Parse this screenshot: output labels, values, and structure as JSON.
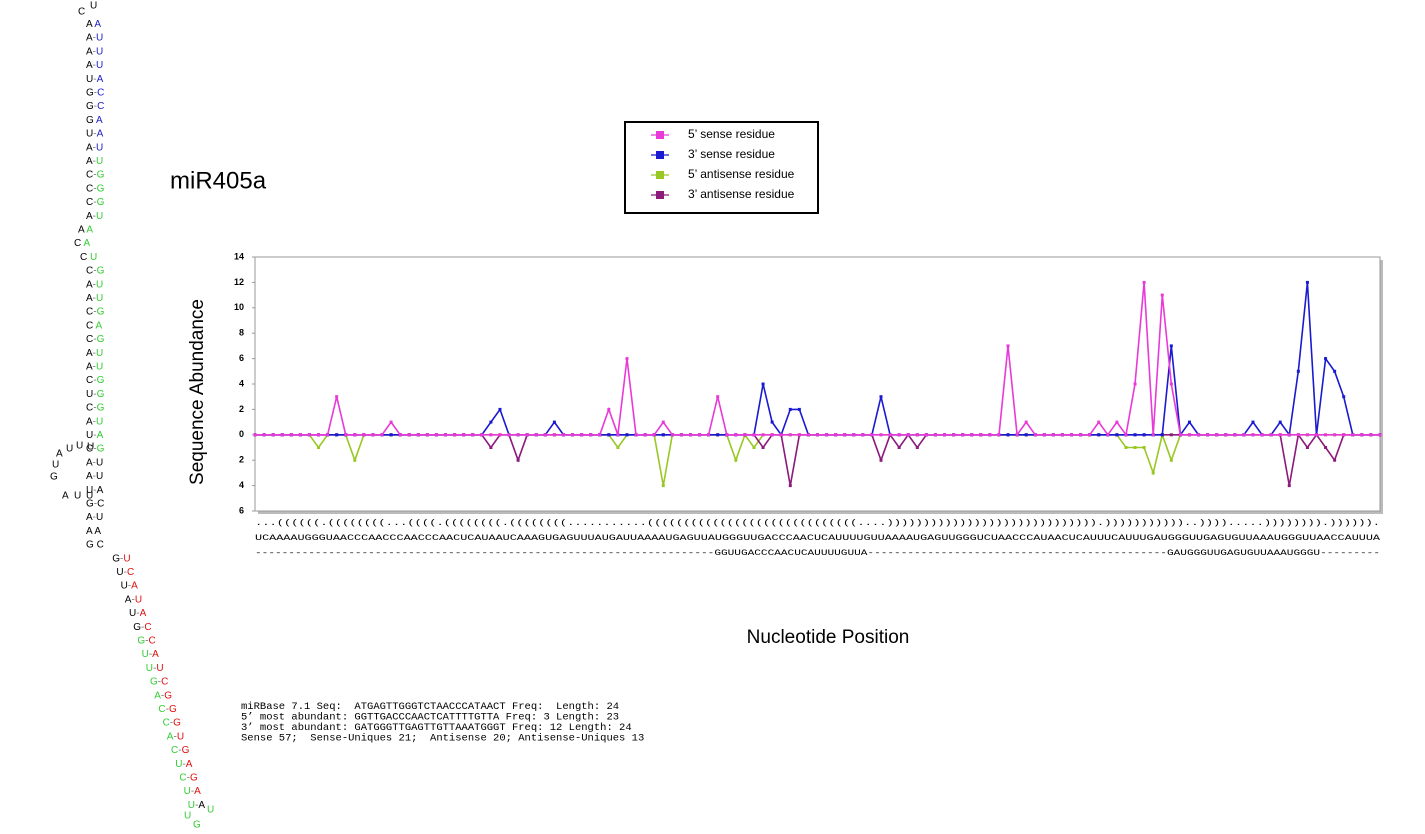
{
  "chart_data": {
    "type": "line",
    "title": "miR405a",
    "ylabel": "Sequence Abundance",
    "xlabel": "Nucleotide Position",
    "ylim": [
      -6,
      14
    ],
    "yticks": [
      {
        "value": -6,
        "label": "6"
      },
      {
        "value": -4,
        "label": "4"
      },
      {
        "value": -2,
        "label": "2"
      },
      0,
      2,
      4,
      6,
      8,
      10,
      12,
      14
    ],
    "legend": "top",
    "series": [
      {
        "name": "5’ sense residue",
        "color": "#e83ad8",
        "values": [
          0,
          0,
          0,
          0,
          0,
          0,
          0,
          0,
          0,
          3,
          0,
          0,
          0,
          0,
          0,
          1,
          0,
          0,
          0,
          0,
          0,
          0,
          0,
          0,
          0,
          0,
          0,
          0,
          0,
          0,
          0,
          0,
          0,
          0,
          0,
          0,
          0,
          0,
          0,
          2,
          0,
          6,
          0,
          0,
          0,
          1,
          0,
          0,
          0,
          0,
          0,
          3,
          0,
          0,
          0,
          0,
          0,
          0,
          0,
          0,
          0,
          0,
          0,
          0,
          0,
          0,
          0,
          0,
          0,
          0,
          0,
          0,
          0,
          0,
          0,
          0,
          0,
          0,
          0,
          0,
          0,
          0,
          0,
          7,
          0,
          1,
          0,
          0,
          0,
          0,
          0,
          0,
          0,
          1,
          0,
          1,
          0,
          4,
          12,
          0,
          11,
          4,
          0,
          0,
          0,
          0,
          0,
          0,
          0,
          0,
          0,
          0,
          0,
          0,
          0,
          0,
          0,
          0,
          0,
          0,
          0,
          0,
          0,
          0,
          0
        ]
      },
      {
        "name": "3’ sense residue",
        "color": "#1a1ad0",
        "values": [
          0,
          0,
          0,
          0,
          0,
          0,
          0,
          0,
          0,
          0,
          0,
          0,
          0,
          0,
          0,
          0,
          0,
          0,
          0,
          0,
          0,
          0,
          0,
          0,
          0,
          0,
          1,
          2,
          0,
          0,
          0,
          0,
          0,
          1,
          0,
          0,
          0,
          0,
          0,
          0,
          0,
          0,
          0,
          0,
          0,
          0,
          0,
          0,
          0,
          0,
          0,
          0,
          0,
          0,
          0,
          0,
          4,
          1,
          0,
          2,
          2,
          0,
          0,
          0,
          0,
          0,
          0,
          0,
          0,
          3,
          0,
          0,
          0,
          0,
          0,
          0,
          0,
          0,
          0,
          0,
          0,
          0,
          0,
          0,
          0,
          0,
          0,
          0,
          0,
          0,
          0,
          0,
          0,
          0,
          0,
          0,
          0,
          0,
          0,
          0,
          0,
          7,
          0,
          1,
          0,
          0,
          0,
          0,
          0,
          0,
          1,
          0,
          0,
          1,
          0,
          5,
          12,
          0,
          6,
          5,
          3,
          0,
          0,
          0,
          0
        ]
      },
      {
        "name": "5’ antisense residue",
        "color": "#99c824",
        "values": [
          0,
          0,
          0,
          0,
          0,
          0,
          0,
          -1,
          0,
          0,
          0,
          -2,
          0,
          0,
          0,
          0,
          0,
          0,
          0,
          0,
          0,
          0,
          0,
          0,
          0,
          0,
          0,
          0,
          0,
          0,
          0,
          0,
          0,
          0,
          0,
          0,
          0,
          0,
          0,
          0,
          -1,
          0,
          0,
          0,
          0,
          -4,
          0,
          0,
          0,
          0,
          0,
          0,
          0,
          -2,
          0,
          -1,
          0,
          0,
          0,
          0,
          0,
          0,
          0,
          0,
          0,
          0,
          0,
          0,
          0,
          0,
          0,
          0,
          0,
          0,
          0,
          0,
          0,
          0,
          0,
          0,
          0,
          0,
          0,
          0,
          0,
          0,
          0,
          0,
          0,
          0,
          0,
          0,
          0,
          0,
          0,
          0,
          -1,
          -1,
          -1,
          -3,
          0,
          -2,
          0,
          0,
          0,
          0,
          0,
          0,
          0,
          0,
          0,
          0,
          0,
          0,
          0,
          0,
          0,
          0,
          0,
          0,
          0,
          0,
          0,
          0,
          0
        ]
      },
      {
        "name": "3’ antisense residue",
        "color": "#8b1a7a",
        "values": [
          0,
          0,
          0,
          0,
          0,
          0,
          0,
          0,
          0,
          0,
          0,
          0,
          0,
          0,
          0,
          0,
          0,
          0,
          0,
          0,
          0,
          0,
          0,
          0,
          0,
          0,
          -1,
          0,
          0,
          -2,
          0,
          0,
          0,
          0,
          0,
          0,
          0,
          0,
          0,
          0,
          0,
          0,
          0,
          0,
          0,
          0,
          0,
          0,
          0,
          0,
          0,
          0,
          0,
          0,
          0,
          0,
          -1,
          0,
          0,
          -4,
          0,
          0,
          0,
          0,
          0,
          0,
          0,
          0,
          0,
          -2,
          0,
          -1,
          0,
          -1,
          0,
          0,
          0,
          0,
          0,
          0,
          0,
          0,
          0,
          0,
          0,
          0,
          0,
          0,
          0,
          0,
          0,
          0,
          0,
          0,
          0,
          0,
          0,
          0,
          0,
          0,
          0,
          0,
          0,
          0,
          0,
          0,
          0,
          0,
          0,
          0,
          0,
          0,
          0,
          0,
          -4,
          0,
          -1,
          0,
          -1,
          -2,
          0,
          0,
          0,
          0,
          0
        ]
      }
    ],
    "sequence_lines": [
      "...((((((.((((((((...((((.((((((((.((((((((...........(((((((((((((((((((((((((((((....))))))))))))))))))))))))))))).)))))))))))..)))).....)))))))).)))))).",
      "UCAAAAUGGGUAACCCAACCCAACCCAACUCAUAAUCAAAGUGAGUUUAUGAUUAAAAUGAGUUAUGGGUUGACCCAACUCAUUUUGUUAAAAUGAGUUGGGUCUAACCCAUAACUCAUUUCAUUUGAUGGGUUGAGUGUUAAAUGGGUUAACCAUUUA",
      "---------------------------------------------------------------------GGUUGACCCAACUCAUUUUGUUA---------------------------------------------GAUGGGUUGAGUGUUAAAUGGGU---------"
    ],
    "info": [
      "miRBase 7.1 Seq:  ATGAGTTGGGTCTAACCCATAACT Freq:  Length: 24",
      "5’ most abundant: GGTTGACCCAACTCATTTTGTTA Freq: 3 Length: 23",
      "3’ most abundant: GATGGGTTGAGTTGTTAAATGGGT Freq: 12 Length: 24",
      "Sense 57;  Sense-Uniques 21;  Antisense 20; Antisense-Uniques 13"
    ]
  },
  "structure": {
    "palette": {
      "k": "#000000",
      "b": "#1a1acc",
      "g": "#33cc33",
      "r": "#e01010"
    },
    "top_loop": [
      "C",
      "U"
    ],
    "rows": [
      "A A",
      "A-U",
      "A-U",
      "A-U",
      "U-A",
      "G-C",
      "G-C",
      "G A",
      "U-A",
      "A-U",
      "A-U",
      "C-G",
      "C-G",
      "C-G",
      "A-U",
      "A A",
      "C A",
      "C U",
      "C-G",
      "A-U",
      "A-U",
      "C-G",
      "C A",
      "C-G",
      "A-U",
      "A-U",
      "C-G",
      "U-G",
      "C-G",
      "A-U",
      "U-A",
      "C-G",
      "A-U",
      "A-U",
      "U-A",
      "G-C",
      "A-U",
      "A A",
      "G C",
      "G-U",
      "U-C",
      "U-A",
      "A-U",
      "U-A",
      "G-C",
      "G-C",
      "U-A",
      "U-U",
      "G-C",
      "A-G",
      "C-G",
      "C-G",
      "A-U",
      "C-G",
      "U-A",
      "C-G",
      "U-A",
      "U-A"
    ],
    "row_colors": [
      "kb",
      "kb",
      "kb",
      "kb",
      "kb",
      "kb",
      "kb",
      "kb",
      "kb",
      "kb",
      "kg",
      "kg",
      "kg",
      "kg",
      "kg",
      "kg",
      "kg",
      "kg",
      "kg",
      "kg",
      "kg",
      "kg",
      "kg",
      "kg",
      "kg",
      "kg",
      "kg",
      "kg",
      "kg",
      "kg",
      "kg",
      "kg",
      "kk",
      "kk",
      "kk",
      "kk",
      "kk",
      "kk",
      "kk",
      "kr",
      "kr",
      "kr",
      "kr",
      "kr",
      "kr",
      "gr",
      "gr",
      "gr",
      "gr",
      "gr",
      "gr",
      "gr",
      "gr",
      "gr",
      "gr",
      "gr",
      "gr",
      "gk"
    ],
    "side_loop": [
      "U",
      "U",
      "U",
      "A",
      "U",
      "G",
      "A",
      "U",
      "U"
    ],
    "bottom_loop": [
      "U",
      "G",
      "U"
    ]
  }
}
